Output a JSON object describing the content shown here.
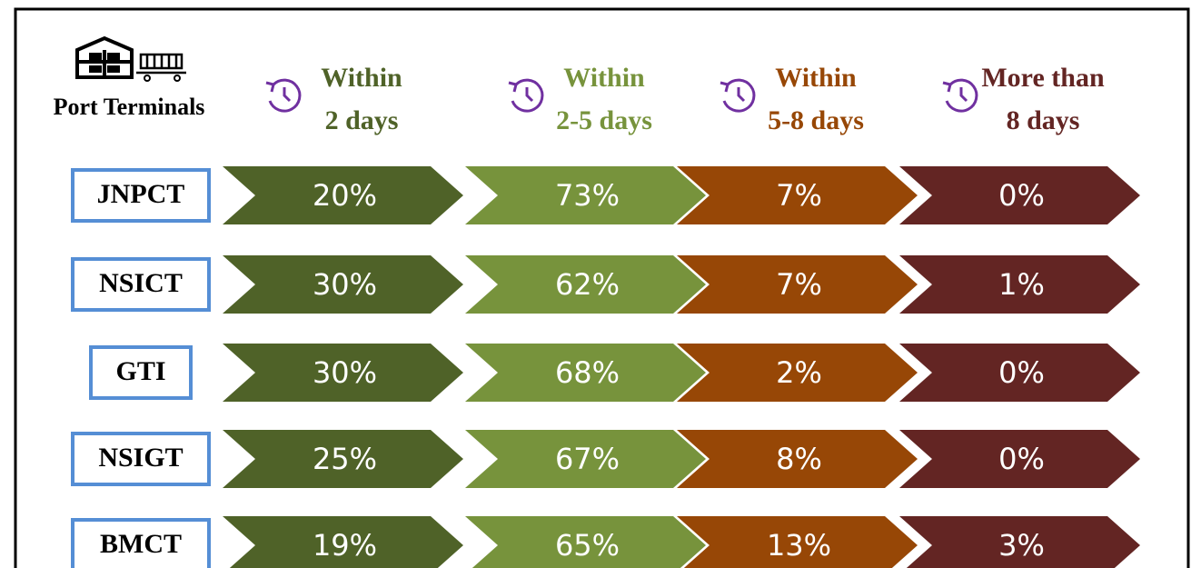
{
  "header": {
    "label": "Port Terminals"
  },
  "columns": [
    {
      "lines": [
        "Within",
        "2 days"
      ],
      "color": "#4f6228"
    },
    {
      "lines": [
        "Within",
        "2-5 days"
      ],
      "color": "#77933c"
    },
    {
      "lines": [
        "Within",
        "5-8 days"
      ],
      "color": "#974706"
    },
    {
      "lines": [
        "More than",
        "8 days"
      ],
      "color": "#632523"
    }
  ],
  "rows": [
    {
      "name": "JNPCT",
      "values": [
        "20%",
        "73%",
        "7%",
        "0%"
      ]
    },
    {
      "name": "NSICT",
      "values": [
        "30%",
        "62%",
        "7%",
        "1%"
      ]
    },
    {
      "name": "GTI",
      "values": [
        "30%",
        "68%",
        "2%",
        "0%"
      ]
    },
    {
      "name": "NSIGT",
      "values": [
        "25%",
        "67%",
        "8%",
        "0%"
      ]
    },
    {
      "name": "BMCT",
      "values": [
        "19%",
        "65%",
        "13%",
        "3%"
      ]
    }
  ]
}
